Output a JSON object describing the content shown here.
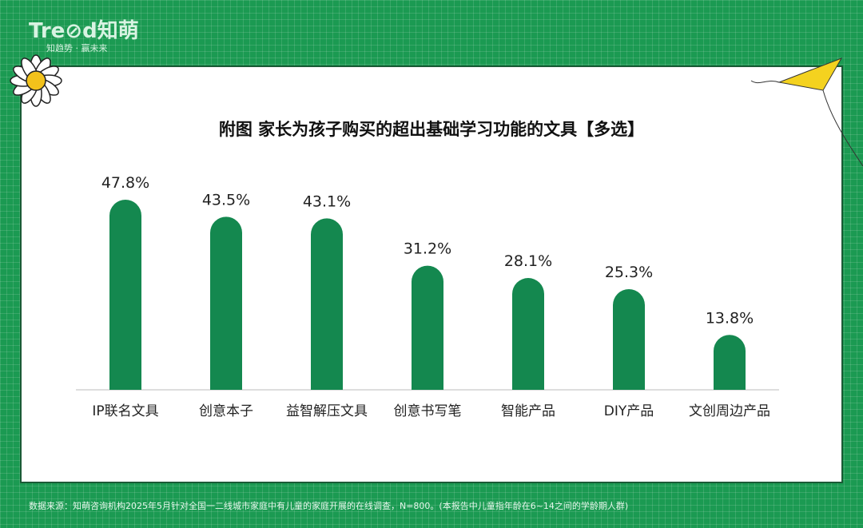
{
  "brand": {
    "logo": "Tre⊘d知萌",
    "slogan": "知趋势 · 赢未来"
  },
  "chart_data": {
    "type": "bar",
    "title": "附图 家长为孩子购买的超出基础学习功能的文具【多选】",
    "categories": [
      "IP联名文具",
      "创意本子",
      "益智解压文具",
      "创意书写笔",
      "智能产品",
      "DIY产品",
      "文创周边产品"
    ],
    "values": [
      47.8,
      43.5,
      43.1,
      31.2,
      28.1,
      25.3,
      13.8
    ],
    "value_labels": [
      "47.8%",
      "43.5%",
      "43.1%",
      "31.2%",
      "28.1%",
      "25.3%",
      "13.8%"
    ],
    "unit": "%",
    "ylim": [
      0,
      50
    ],
    "grid": false,
    "bar_color": "#14884f"
  },
  "footer": "数据来源：知萌咨询机构2025年5月针对全国一二线城市家庭中有儿童的家庭开展的在线调查，N=800。(本报告中儿童指年龄在6~14之间的学龄期人群)"
}
